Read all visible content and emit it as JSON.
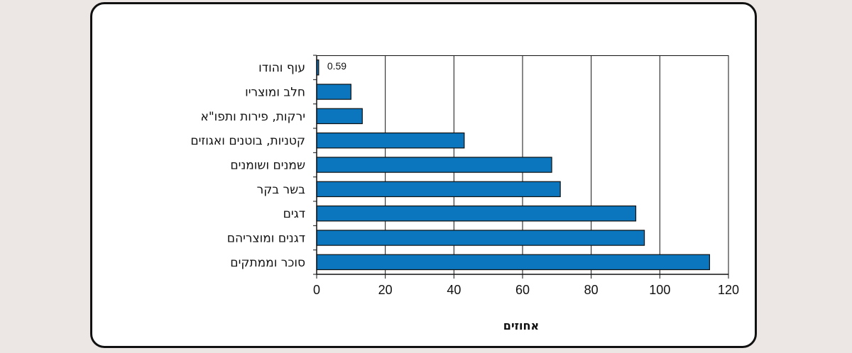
{
  "chart_data": {
    "type": "bar",
    "orientation": "horizontal",
    "title": "",
    "xlabel": "אחוזים",
    "ylabel": "",
    "categories": [
      "עוף והודו",
      "חלב ומוצריו",
      "ירקות, פירות ותפו\"א",
      "קטניות, בוטנים ואגוזים",
      "שמנים ושומנים",
      "בשר בקר",
      "דגים",
      "דגנים ומוצריהם",
      "סוכר וממתקים"
    ],
    "values": [
      0.59,
      10,
      13.3,
      43,
      68.5,
      71,
      93,
      95.5,
      114.5
    ],
    "data_labels": [
      {
        "category": "עוף והודו",
        "label": "0.59"
      }
    ],
    "xlim": [
      0,
      120
    ],
    "xticks": [
      "0",
      "20",
      "40",
      "60",
      "80",
      "100",
      "120"
    ],
    "xtick_values": [
      0,
      20,
      40,
      60,
      80,
      100,
      120
    ],
    "grid": "vertical",
    "legend": "none",
    "bar_color": "#0b76be",
    "bar_edge_color": "#111111"
  }
}
